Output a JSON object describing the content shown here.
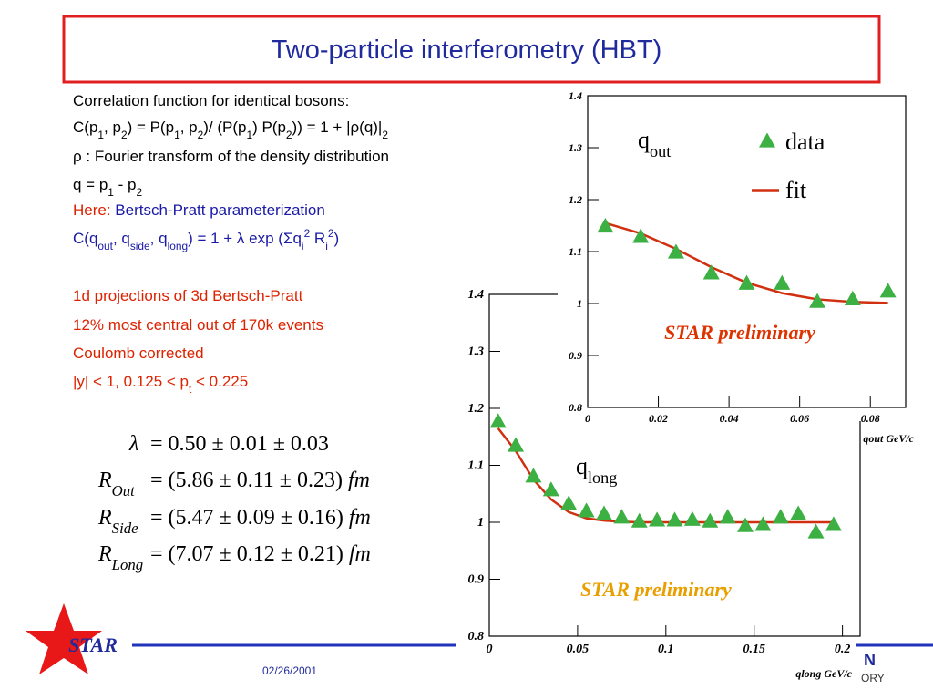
{
  "title": "Two-particle interferometry (HBT)",
  "text": {
    "lines": [
      [
        "Correlation function for identical bosons:"
      ],
      [
        "C(p",
        "1",
        ", p",
        "2",
        ") = P(p",
        "1",
        ", p",
        "2",
        ")/ (P(p",
        "1",
        ") P(p",
        "2",
        ")) = 1 + |ρ(q)|",
        "2"
      ],
      [
        "ρ : Fourier transform of the density distribution"
      ],
      [
        "q = p",
        "1",
        " - p",
        "2"
      ],
      [
        "Here: ",
        "Bertsch-Pratt parameterization"
      ],
      [
        "C(q",
        "out",
        ", q",
        "side",
        ", q",
        "long",
        ") = 1 + λ exp (Σq",
        "i",
        "2",
        " R",
        "i",
        "2",
        ")"
      ],
      [
        "1d projections of 3d Bertsch-Pratt"
      ],
      [
        "12% most central out of 170k events"
      ],
      [
        "Coulomb corrected"
      ],
      [
        "|y| < 1, 0.125 < p",
        "t",
        " < 0.225"
      ]
    ]
  },
  "equations": [
    [
      "λ",
      "= 0.50 ± 0.01 ± 0.03"
    ],
    [
      "R",
      "Out",
      "= (5.86 ± 0.11 ± 0.23) ",
      "fm"
    ],
    [
      "R",
      "Side",
      "= (5.47 ± 0.09 ± 0.16) ",
      "fm"
    ],
    [
      "R",
      "Long",
      "= (7.07 ± 0.12 ± 0.21) ",
      "fm"
    ]
  ],
  "chart_data": [
    {
      "type": "scatter",
      "xlabel": "qout GeV/c",
      "variable": [
        "q",
        "out"
      ],
      "annotations": [
        {
          "text": "STAR preliminary",
          "color": "#dd3300"
        }
      ],
      "legend": "upper right",
      "x": [
        0.005,
        0.015,
        0.025,
        0.035,
        0.045,
        0.055,
        0.065,
        0.075,
        0.085
      ],
      "series": [
        {
          "name": "data",
          "color": "#3cb043",
          "marker": "triangle",
          "values": [
            1.15,
            1.13,
            1.1,
            1.06,
            1.04,
            1.04,
            1.005,
            1.01,
            1.025
          ]
        },
        {
          "name": "fit",
          "color": "#d03010",
          "marker": "line",
          "values": [
            1.155,
            1.135,
            1.105,
            1.07,
            1.04,
            1.02,
            1.008,
            1.003,
            1.001
          ]
        }
      ],
      "xlim": [
        0,
        0.09
      ],
      "xticks": [
        0,
        0.02,
        0.04,
        0.06,
        0.08
      ],
      "ylim": [
        0.8,
        1.4
      ],
      "yticks": [
        0.8,
        0.9,
        1,
        1.1,
        1.2,
        1.3,
        1.4
      ]
    },
    {
      "type": "scatter",
      "xlabel": "qlong GeV/c",
      "variable": [
        "q",
        "long"
      ],
      "annotations": [
        {
          "text": "STAR preliminary",
          "color": "#e8a000"
        }
      ],
      "x": [
        0.005,
        0.015,
        0.025,
        0.035,
        0.045,
        0.055,
        0.065,
        0.075,
        0.085,
        0.095,
        0.105,
        0.115,
        0.125,
        0.135,
        0.145,
        0.155,
        0.165,
        0.175,
        0.185,
        0.195
      ],
      "series": [
        {
          "color": "#3cb043",
          "marker": "triangle",
          "values": [
            1.178,
            1.136,
            1.082,
            1.058,
            1.034,
            1.021,
            1.016,
            1.01,
            1.003,
            1.005,
            1.005,
            1.006,
            1.003,
            1.01,
            0.995,
            0.997,
            1.01,
            1.016,
            0.984,
            0.997
          ]
        },
        {
          "color": "#d03010",
          "marker": "line",
          "values": [
            1.165,
            1.125,
            1.075,
            1.04,
            1.018,
            1.007,
            1.003,
            1.001,
            1.0,
            1.0,
            1.0,
            1.0,
            1.0,
            1.0,
            1.0,
            1.0,
            1.0,
            1.0,
            1.0,
            1.0
          ]
        }
      ],
      "xlim": [
        0,
        0.21
      ],
      "xticks": [
        0,
        0.05,
        0.1,
        0.15,
        0.2
      ],
      "ylim": [
        0.8,
        1.4
      ],
      "yticks": [
        0.8,
        0.9,
        1,
        1.1,
        1.2,
        1.3,
        1.4
      ]
    }
  ],
  "footer": {
    "logo": "STAR",
    "date": "02/26/2001",
    "lab": [
      "N",
      "ORY"
    ]
  }
}
